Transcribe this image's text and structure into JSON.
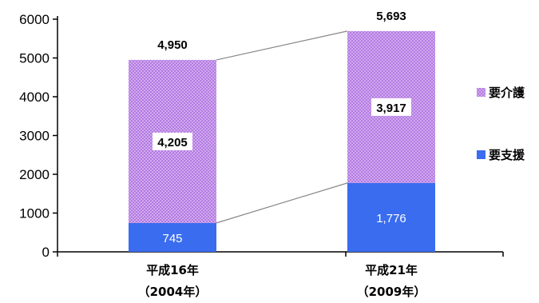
{
  "chart_data": {
    "type": "bar",
    "stacked": true,
    "categories": [
      "平成16年",
      "平成21年"
    ],
    "category_sublabels": [
      "（2004年）",
      "（2009年）"
    ],
    "series": [
      {
        "name": "要支援",
        "values": [
          745,
          1776
        ],
        "value_labels": [
          "745",
          "1,776"
        ],
        "color": "#3a6cf0"
      },
      {
        "name": "要介護",
        "values": [
          4205,
          3917
        ],
        "value_labels": [
          "4,205",
          "3,917"
        ],
        "color": "#b47ae3"
      }
    ],
    "totals": [
      4950,
      5693
    ],
    "total_labels": [
      "4,950",
      "5,693"
    ],
    "ylim": [
      0,
      6000
    ],
    "yticks": [
      0,
      1000,
      2000,
      3000,
      4000,
      5000,
      6000
    ],
    "ytick_labels": [
      "0",
      "1000",
      "2000",
      "3000",
      "4000",
      "5000",
      "6000"
    ],
    "legend": {
      "position": "right",
      "order": [
        "要介護",
        "要支援"
      ]
    },
    "connector_lines": true,
    "grid": false
  }
}
